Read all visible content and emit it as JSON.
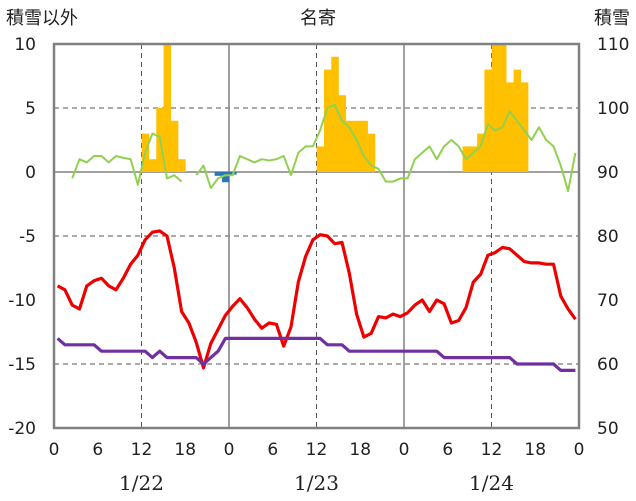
{
  "chart_data": {
    "type": "line",
    "title": "名寄",
    "left_axis_label": "積雪以外",
    "right_axis_label": "積雪",
    "left_ylim": [
      -20,
      10
    ],
    "left_yticks": [
      "10",
      "5",
      "0",
      "-5",
      "-10",
      "-15",
      "-20"
    ],
    "right_ylim": [
      50,
      110
    ],
    "right_yticks": [
      "110",
      "100",
      "90",
      "80",
      "70",
      "60",
      "50"
    ],
    "x_hours_range": [
      0,
      72
    ],
    "x_tick_labels": [
      "0",
      "6",
      "12",
      "18",
      "0",
      "6",
      "12",
      "18",
      "0",
      "6",
      "12",
      "18",
      "0"
    ],
    "day_labels": [
      "1/22",
      "1/23",
      "1/24"
    ],
    "grid": "dashed vertical at 12h, dashed horizontal at -5/5/-15 and 90/70",
    "colors": {
      "temperature": "#ee0000",
      "dewpoint": "#7030a0",
      "snow_depth": "#92d050",
      "snowfall_bar": "#ffc000",
      "snowmelt_bar": "#2e75b6",
      "axes": "#808080"
    },
    "series": [
      {
        "kind": "line",
        "axis": "left",
        "color": "#ee0000",
        "values": [
          -8.9,
          -9.2,
          -10.4,
          -10.7,
          -8.9,
          -8.5,
          -8.3,
          -8.9,
          -9.2,
          -8.3,
          -7.2,
          -6.5,
          -5.3,
          -4.7,
          -4.6,
          -5.0,
          -7.5,
          -10.9,
          -11.8,
          -13.3,
          -15.3,
          -13.4,
          -12.3,
          -11.2,
          -10.5,
          -9.9,
          -10.6,
          -11.5,
          -12.2,
          -11.8,
          -11.9,
          -13.6,
          -12.1,
          -8.6,
          -6.6,
          -5.3,
          -4.9,
          -5.0,
          -5.6,
          -5.5,
          -7.9,
          -11.1,
          -12.9,
          -12.6,
          -11.3,
          -11.4,
          -11.1,
          -11.3,
          -11.0,
          -10.4,
          -10.0,
          -10.9,
          -10.0,
          -10.3,
          -11.8,
          -11.6,
          -10.6,
          -8.6,
          -8.0,
          -6.5,
          -6.3,
          -5.9,
          -6.0,
          -6.5,
          -7.0,
          -7.1,
          -7.1,
          -7.2,
          -7.2,
          -9.7,
          -10.7,
          -11.5
        ]
      },
      {
        "kind": "line",
        "axis": "left",
        "color": "#7030a0",
        "values": [
          -13,
          -13.5,
          -13.5,
          -13.5,
          -13.5,
          -13.5,
          -14,
          -14,
          -14,
          -14,
          -14,
          -14,
          -14,
          -14.5,
          -14,
          -14.5,
          -14.5,
          -14.5,
          -14.5,
          -14.5,
          -15,
          -14.5,
          -14,
          -13,
          -13,
          -13,
          -13,
          -13,
          -13,
          -13,
          -13,
          -13,
          -13,
          -13,
          -13,
          -13,
          -13,
          -13.5,
          -13.5,
          -13.5,
          -14,
          -14,
          -14,
          -14,
          -14,
          -14,
          -14,
          -14,
          -14,
          -14,
          -14,
          -14,
          -14,
          -14.5,
          -14.5,
          -14.5,
          -14.5,
          -14.5,
          -14.5,
          -14.5,
          -14.5,
          -14.5,
          -14.5,
          -15,
          -15,
          -15,
          -15,
          -15,
          -15,
          -15.5,
          -15.5,
          -15.5
        ]
      },
      {
        "kind": "line",
        "axis": "right",
        "color": "#92d050",
        "values": [
          null,
          null,
          89,
          92,
          91.5,
          92.5,
          92.5,
          91.5,
          92.5,
          92.2,
          92,
          88,
          93,
          96,
          95.5,
          89,
          89.5,
          88.5,
          null,
          89.5,
          91,
          87.5,
          89,
          89.5,
          89.5,
          92.5,
          92,
          91.5,
          92,
          91.8,
          92,
          92.5,
          89.5,
          93,
          94,
          94,
          96.5,
          100,
          100.5,
          98,
          97,
          95,
          92.5,
          91,
          90.5,
          88.5,
          88.5,
          89,
          89,
          92,
          93,
          94,
          92,
          94,
          95,
          94,
          92,
          93,
          94,
          97.5,
          96.5,
          97,
          99.5,
          98,
          96.5,
          95,
          97,
          95,
          94,
          91,
          87,
          93
        ]
      },
      {
        "kind": "bar",
        "axis": "left",
        "color": "#ffc000",
        "values": [
          0,
          0,
          0,
          0,
          0,
          0,
          0,
          0,
          0,
          0,
          0,
          0,
          3,
          1,
          5,
          10,
          4,
          1,
          0,
          0,
          0,
          0,
          0,
          0,
          0,
          0,
          0,
          0,
          0,
          0,
          0,
          0,
          0,
          0,
          0,
          0,
          2,
          8,
          9,
          6,
          4,
          4,
          4,
          3,
          0,
          0,
          0,
          0,
          0,
          0,
          0,
          0,
          0,
          0,
          0,
          0,
          2,
          2,
          3,
          8,
          10,
          10,
          7,
          8,
          7,
          0,
          0,
          0,
          0,
          0,
          0,
          0
        ]
      },
      {
        "kind": "bar",
        "axis": "left",
        "color": "#2e75b6",
        "values": [
          0,
          0,
          0,
          0,
          0,
          0,
          0,
          0,
          0,
          0,
          0,
          0,
          0,
          0,
          0,
          0,
          0,
          0,
          0,
          0,
          0,
          0,
          -0.3,
          -0.8,
          -0.2,
          0,
          0,
          0,
          0,
          0,
          0,
          0,
          0,
          0,
          0,
          0,
          0,
          0,
          0,
          0,
          0,
          0,
          0,
          0,
          0,
          0,
          0,
          0,
          0,
          0,
          0,
          0,
          0,
          0,
          0,
          0,
          0,
          0,
          0,
          0,
          0,
          0,
          0,
          0,
          0,
          0,
          0,
          0,
          0,
          0,
          0,
          0
        ]
      }
    ]
  }
}
